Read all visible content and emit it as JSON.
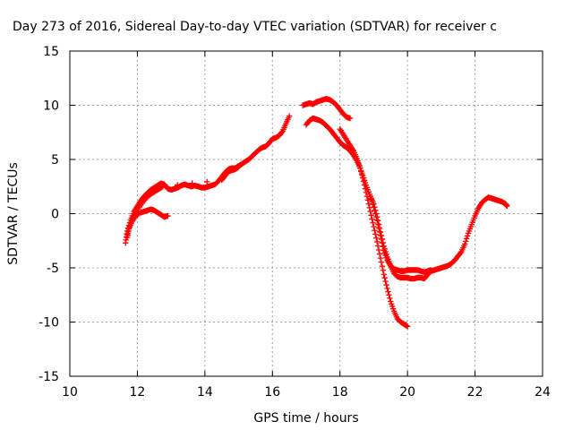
{
  "chart_data": {
    "type": "scatter",
    "title": "Day 273 of 2016, Sidereal Day-to-day VTEC variation (SDTVAR) for receiver c",
    "xlabel": "GPS time / hours",
    "ylabel": "SDTVAR / TECUs",
    "xlim": [
      10,
      24
    ],
    "ylim": [
      -15,
      15
    ],
    "xticks": [
      10,
      12,
      14,
      16,
      18,
      20,
      22,
      24
    ],
    "yticks": [
      -15,
      -10,
      -5,
      0,
      5,
      10,
      15
    ],
    "grid": true,
    "marker": "plus",
    "color": "#ff0000",
    "series": [
      {
        "points": [
          [
            11.65,
            -2.7
          ],
          [
            11.7,
            -1.6
          ],
          [
            11.8,
            -0.6
          ],
          [
            11.9,
            0.2
          ],
          [
            12.0,
            0.7
          ],
          [
            12.1,
            1.2
          ],
          [
            12.2,
            1.6
          ],
          [
            12.3,
            1.9
          ],
          [
            12.4,
            2.2
          ],
          [
            12.5,
            2.4
          ],
          [
            12.6,
            2.6
          ],
          [
            12.7,
            2.8
          ],
          [
            12.8,
            2.7
          ],
          [
            12.9,
            2.3
          ],
          [
            13.0,
            2.2
          ],
          [
            13.1,
            2.3
          ],
          [
            13.2,
            2.4
          ],
          [
            13.3,
            2.6
          ],
          [
            13.4,
            2.7
          ],
          [
            13.5,
            2.6
          ],
          [
            13.6,
            2.5
          ],
          [
            13.7,
            2.6
          ],
          [
            13.8,
            2.5
          ],
          [
            13.9,
            2.4
          ],
          [
            14.0,
            2.4
          ],
          [
            14.1,
            2.5
          ],
          [
            14.2,
            2.6
          ],
          [
            14.3,
            2.7
          ],
          [
            14.4,
            3.0
          ],
          [
            14.5,
            3.4
          ],
          [
            14.6,
            3.8
          ],
          [
            14.7,
            4.1
          ],
          [
            14.8,
            4.2
          ],
          [
            14.9,
            4.2
          ],
          [
            15.0,
            4.4
          ],
          [
            15.1,
            4.6
          ],
          [
            15.2,
            4.8
          ],
          [
            15.3,
            5.0
          ],
          [
            15.4,
            5.3
          ],
          [
            15.5,
            5.6
          ],
          [
            15.6,
            5.9
          ],
          [
            15.7,
            6.1
          ],
          [
            15.8,
            6.2
          ],
          [
            15.9,
            6.5
          ],
          [
            16.0,
            6.9
          ],
          [
            16.1,
            7.0
          ],
          [
            16.2,
            7.2
          ],
          [
            16.3,
            7.6
          ],
          [
            16.4,
            8.3
          ],
          [
            16.5,
            9.0
          ]
        ]
      },
      {
        "points": [
          [
            11.7,
            -2.2
          ],
          [
            11.75,
            -1.4
          ],
          [
            11.85,
            -0.7
          ],
          [
            11.95,
            -0.2
          ],
          [
            12.1,
            0.1
          ],
          [
            12.2,
            0.2
          ],
          [
            12.3,
            0.3
          ],
          [
            12.4,
            0.4
          ],
          [
            12.5,
            0.3
          ],
          [
            12.6,
            0.1
          ],
          [
            12.7,
            -0.1
          ],
          [
            12.8,
            -0.3
          ],
          [
            12.9,
            -0.2
          ]
        ]
      },
      {
        "points": [
          [
            11.7,
            -1.9
          ],
          [
            11.8,
            -0.8
          ],
          [
            11.95,
            0.1
          ],
          [
            12.1,
            0.8
          ],
          [
            12.25,
            1.4
          ],
          [
            12.4,
            1.8
          ],
          [
            12.55,
            2.1
          ],
          [
            12.65,
            2.3
          ],
          [
            12.75,
            2.5
          ],
          [
            14.5,
            3.1
          ],
          [
            14.6,
            3.5
          ],
          [
            14.7,
            3.9
          ],
          [
            14.8,
            4.0
          ],
          [
            14.9,
            4.1
          ],
          [
            15.0,
            4.3
          ]
        ]
      },
      {
        "points": [
          [
            16.9,
            10.0
          ],
          [
            17.0,
            10.1
          ],
          [
            17.1,
            10.2
          ],
          [
            17.2,
            10.1
          ],
          [
            17.3,
            10.3
          ],
          [
            17.4,
            10.4
          ],
          [
            17.5,
            10.5
          ],
          [
            17.6,
            10.6
          ],
          [
            17.7,
            10.5
          ],
          [
            17.8,
            10.3
          ],
          [
            17.9,
            10.0
          ],
          [
            18.0,
            9.6
          ],
          [
            18.1,
            9.2
          ],
          [
            18.2,
            8.9
          ],
          [
            18.3,
            8.8
          ]
        ]
      },
      {
        "points": [
          [
            17.0,
            8.2
          ],
          [
            17.1,
            8.6
          ],
          [
            17.2,
            8.8
          ],
          [
            17.3,
            8.7
          ],
          [
            17.4,
            8.6
          ],
          [
            17.5,
            8.4
          ],
          [
            17.6,
            8.1
          ],
          [
            17.7,
            7.8
          ],
          [
            17.8,
            7.4
          ],
          [
            17.9,
            7.0
          ],
          [
            18.0,
            6.6
          ],
          [
            18.1,
            6.3
          ],
          [
            18.2,
            6.1
          ],
          [
            18.3,
            5.8
          ],
          [
            18.4,
            5.4
          ],
          [
            18.5,
            4.9
          ],
          [
            18.6,
            4.2
          ],
          [
            18.7,
            3.3
          ],
          [
            18.8,
            2.4
          ],
          [
            18.9,
            1.6
          ],
          [
            19.0,
            0.9
          ],
          [
            19.1,
            -0.3
          ],
          [
            19.2,
            -1.7
          ],
          [
            19.3,
            -3.0
          ],
          [
            19.4,
            -4.0
          ],
          [
            19.5,
            -4.8
          ],
          [
            19.6,
            -5.5
          ],
          [
            19.7,
            -5.8
          ],
          [
            19.8,
            -5.9
          ],
          [
            19.9,
            -5.9
          ],
          [
            20.0,
            -5.9
          ],
          [
            20.1,
            -6.0
          ],
          [
            20.2,
            -6.0
          ],
          [
            20.3,
            -5.9
          ],
          [
            20.4,
            -5.9
          ],
          [
            20.5,
            -6.0
          ],
          [
            20.6,
            -5.6
          ],
          [
            20.7,
            -5.3
          ],
          [
            20.8,
            -5.2
          ],
          [
            20.9,
            -5.1
          ],
          [
            21.0,
            -5.0
          ],
          [
            21.1,
            -4.9
          ],
          [
            21.2,
            -4.8
          ],
          [
            21.3,
            -4.6
          ],
          [
            21.4,
            -4.3
          ],
          [
            21.5,
            -3.9
          ],
          [
            21.6,
            -3.5
          ],
          [
            21.7,
            -2.8
          ],
          [
            21.8,
            -1.8
          ],
          [
            21.9,
            -1.0
          ],
          [
            22.0,
            -0.2
          ],
          [
            22.1,
            0.5
          ],
          [
            22.2,
            1.0
          ],
          [
            22.3,
            1.3
          ],
          [
            22.4,
            1.5
          ],
          [
            22.5,
            1.4
          ],
          [
            22.6,
            1.3
          ],
          [
            22.7,
            1.2
          ],
          [
            22.8,
            1.1
          ],
          [
            22.9,
            0.9
          ],
          [
            22.95,
            0.7
          ]
        ]
      },
      {
        "points": [
          [
            18.0,
            7.8
          ],
          [
            18.1,
            7.3
          ],
          [
            18.2,
            6.8
          ],
          [
            18.3,
            6.3
          ],
          [
            18.4,
            5.8
          ],
          [
            18.5,
            5.1
          ],
          [
            18.6,
            4.2
          ],
          [
            18.7,
            3.0
          ],
          [
            18.8,
            1.6
          ],
          [
            18.9,
            0.2
          ],
          [
            19.0,
            -1.2
          ],
          [
            19.1,
            -2.6
          ],
          [
            19.2,
            -4.1
          ],
          [
            19.3,
            -5.6
          ],
          [
            19.4,
            -6.9
          ],
          [
            19.5,
            -8.1
          ],
          [
            19.6,
            -9.0
          ],
          [
            19.7,
            -9.7
          ],
          [
            19.8,
            -10.0
          ],
          [
            19.9,
            -10.2
          ],
          [
            20.0,
            -10.4
          ]
        ]
      },
      {
        "points": [
          [
            18.9,
            1.6
          ],
          [
            19.0,
            0.6
          ],
          [
            19.1,
            -0.6
          ],
          [
            19.2,
            -2.0
          ],
          [
            19.3,
            -3.4
          ],
          [
            19.4,
            -4.3
          ],
          [
            19.5,
            -4.8
          ],
          [
            19.6,
            -5.1
          ],
          [
            19.7,
            -5.2
          ],
          [
            19.8,
            -5.3
          ],
          [
            19.9,
            -5.3
          ],
          [
            20.0,
            -5.2
          ],
          [
            20.1,
            -5.2
          ],
          [
            20.2,
            -5.2
          ],
          [
            20.3,
            -5.2
          ],
          [
            20.4,
            -5.3
          ],
          [
            20.5,
            -5.4
          ],
          [
            20.6,
            -5.3
          ],
          [
            20.7,
            -5.2
          ]
        ]
      }
    ]
  }
}
